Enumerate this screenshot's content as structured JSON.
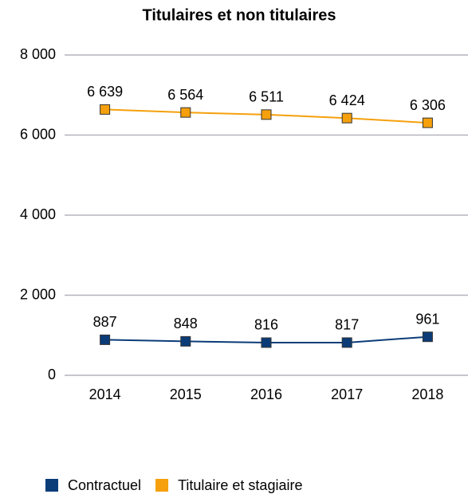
{
  "chart_data": {
    "type": "line",
    "title": "Titulaires et non titulaires",
    "categories": [
      "2014",
      "2015",
      "2016",
      "2017",
      "2018"
    ],
    "series": [
      {
        "name": "Contractuel",
        "color": "#0b3c78",
        "values": [
          887,
          848,
          816,
          817,
          961
        ]
      },
      {
        "name": "Titulaire et stagiaire",
        "color": "#f5a00c",
        "values": [
          6639,
          6564,
          6511,
          6424,
          6306
        ],
        "value_labels": [
          "6 639",
          "6 564",
          "6 511",
          "6 424",
          "6 306"
        ]
      }
    ],
    "ylim": [
      0,
      8000
    ],
    "yticks": [
      0,
      {
        "value": 2000,
        "label": "2 000"
      },
      {
        "value": 4000,
        "label": "4 000"
      },
      {
        "value": 6000,
        "label": "6 000"
      },
      {
        "value": 8000,
        "label": "8 000"
      }
    ],
    "grid": true,
    "legend": "bottom"
  }
}
